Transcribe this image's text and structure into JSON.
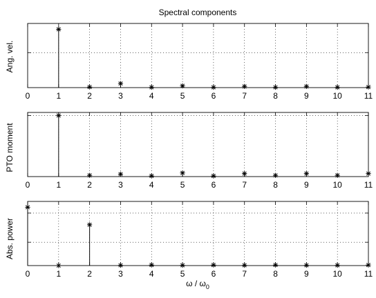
{
  "figure": {
    "title": "Spectral components",
    "xlabel_main": "ω / ω",
    "xlabel_sub": "0"
  },
  "chart_data": [
    {
      "type": "stem",
      "ylabel": "Ang. vel.",
      "x": [
        1,
        2,
        3,
        4,
        5,
        6,
        7,
        8,
        9,
        10,
        11
      ],
      "values": [
        1.0,
        0.01,
        0.07,
        0.005,
        0.03,
        0.005,
        0.02,
        0.005,
        0.02,
        0.005,
        0.01
      ],
      "xlim": [
        0,
        11
      ],
      "ylim": [
        0,
        1.1
      ],
      "ygrid": [
        0.6
      ],
      "xticks": [
        "0",
        "1",
        "2",
        "3",
        "4",
        "5",
        "6",
        "7",
        "8",
        "9",
        "10",
        "11"
      ],
      "grid": true
    },
    {
      "type": "stem",
      "ylabel": "PTO moment",
      "x": [
        1,
        2,
        3,
        4,
        5,
        6,
        7,
        8,
        9,
        10,
        11
      ],
      "values": [
        1.0,
        0.02,
        0.04,
        0.01,
        0.06,
        0.01,
        0.05,
        0.02,
        0.05,
        0.02,
        0.05
      ],
      "xlim": [
        0,
        11
      ],
      "ylim": [
        0,
        1.05
      ],
      "ygrid": [
        1.0
      ],
      "xticks": [
        "0",
        "1",
        "2",
        "3",
        "4",
        "5",
        "6",
        "7",
        "8",
        "9",
        "10",
        "11"
      ],
      "grid": true
    },
    {
      "type": "stem",
      "ylabel": "Abs. power",
      "x": [
        0,
        1,
        2,
        3,
        4,
        5,
        6,
        7,
        8,
        9,
        10,
        11
      ],
      "values": [
        1.0,
        0.0,
        0.7,
        0.005,
        0.01,
        0.005,
        0.01,
        0.005,
        0.01,
        0.005,
        0.005,
        0.01
      ],
      "xlim": [
        0,
        11
      ],
      "ylim": [
        0,
        1.1
      ],
      "ygrid": [
        0.4,
        0.9
      ],
      "xticks": [
        "0",
        "1",
        "2",
        "3",
        "4",
        "5",
        "6",
        "7",
        "8",
        "9",
        "10",
        "11"
      ],
      "grid": true
    }
  ]
}
